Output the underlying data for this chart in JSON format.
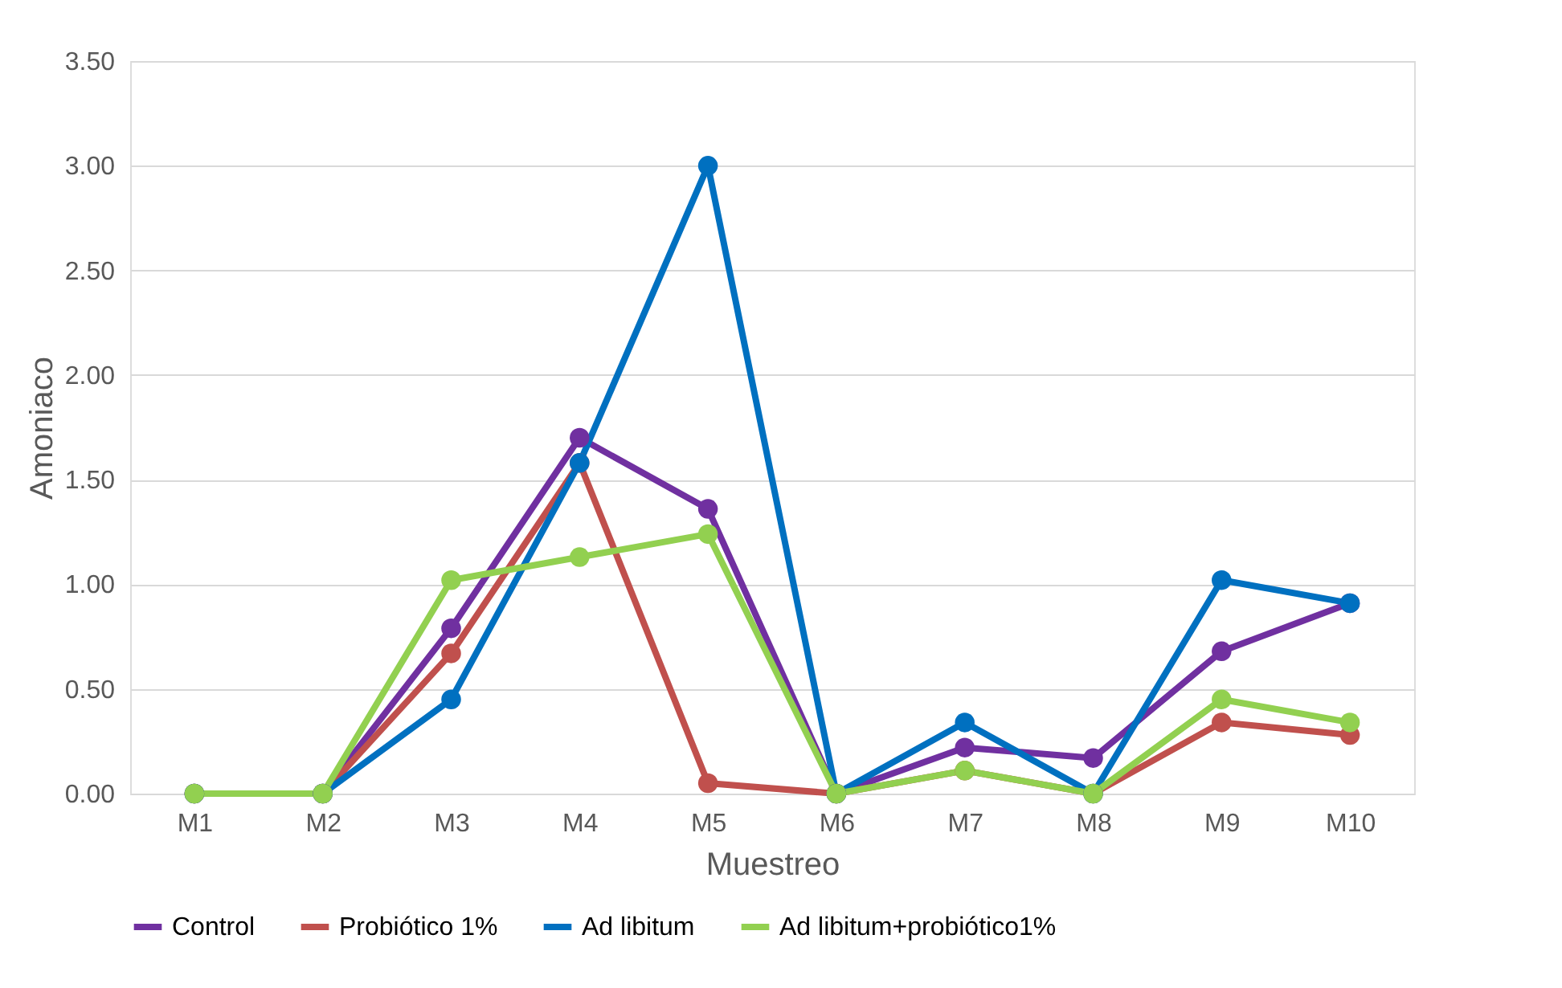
{
  "chart_data": {
    "type": "line",
    "xlabel": "Muestreo",
    "ylabel": "Amoniaco",
    "categories": [
      "M1",
      "M2",
      "M3",
      "M4",
      "M5",
      "M6",
      "M7",
      "M8",
      "M9",
      "M10"
    ],
    "series": [
      {
        "name": "Control",
        "color": "#7030a0",
        "values": [
          0,
          0,
          0.79,
          1.7,
          1.36,
          0,
          0.22,
          0.17,
          0.68,
          0.91
        ]
      },
      {
        "name": "Probiótico 1%",
        "color": "#c0504d",
        "values": [
          0,
          0,
          0.67,
          1.58,
          0.05,
          0,
          0.11,
          0,
          0.34,
          0.28
        ]
      },
      {
        "name": "Ad libitum",
        "color": "#0070c0",
        "values": [
          0,
          0,
          0.45,
          1.58,
          3.0,
          0,
          0.34,
          0,
          1.02,
          0.91
        ]
      },
      {
        "name": "Ad libitum+probiótico1%",
        "color": "#92d050",
        "values": [
          0,
          0,
          1.02,
          1.13,
          1.24,
          0,
          0.11,
          0,
          0.45,
          0.34
        ]
      }
    ],
    "ylim": [
      0,
      3.5
    ],
    "yticks": [
      {
        "value": 0,
        "label": "0.00"
      },
      {
        "value": 0.5,
        "label": "0.50"
      },
      {
        "value": 1,
        "label": "1.00"
      },
      {
        "value": 1.5,
        "label": "1.50"
      },
      {
        "value": 2,
        "label": "2.00"
      },
      {
        "value": 2.5,
        "label": "2.50"
      },
      {
        "value": 3,
        "label": "3.00"
      },
      {
        "value": 3.5,
        "label": "3.50"
      }
    ],
    "grid": "y",
    "legend": "bottom",
    "marker": "circle",
    "line_style": "solid"
  }
}
